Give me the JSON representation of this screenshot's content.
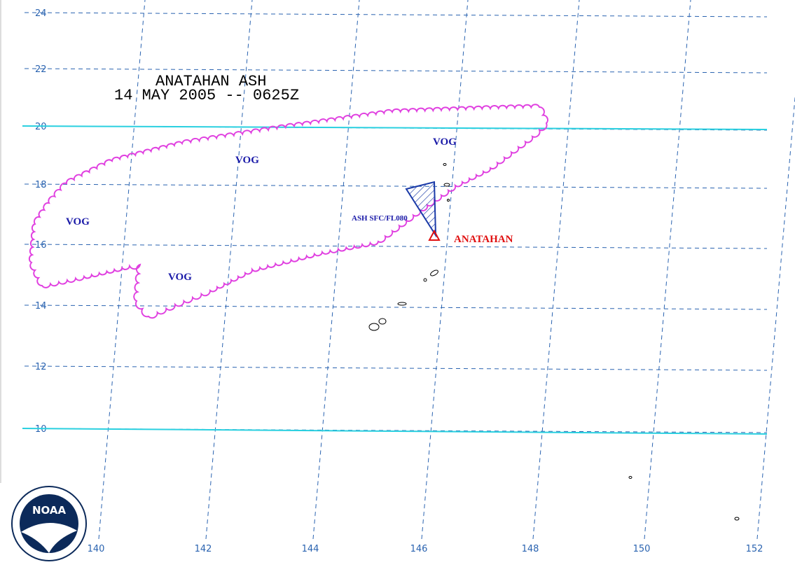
{
  "map": {
    "title": "ANATAHAN ASH",
    "subtitle": "14 MAY 2005 -- 0625Z",
    "labels": {
      "vog": [
        "VOG",
        "VOG",
        "VOG",
        "VOG"
      ],
      "ash": "ASH SFC/FL080",
      "volcano": "ANATAHAN"
    },
    "latitudes": [
      24,
      22,
      20,
      18,
      16,
      14,
      12,
      10
    ],
    "longitudes": [
      140,
      142,
      144,
      146,
      148,
      150,
      152
    ],
    "logo": "NOAA"
  }
}
